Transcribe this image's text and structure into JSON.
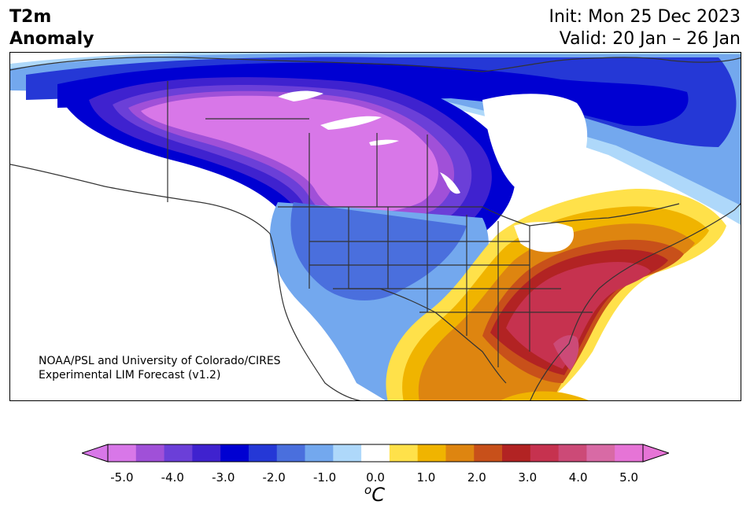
{
  "header": {
    "title_line1": "T2m",
    "title_line2": "Anomaly",
    "init_line": "Init: Mon 25 Dec 2023",
    "valid_line": "Valid: 20 Jan – 26 Jan"
  },
  "credit": {
    "line1": "NOAA/PSL and University of Colorado/CIRES",
    "line2": "Experimental LIM Forecast (v1.2)"
  },
  "colorbar": {
    "unit_base": "C",
    "unit_super": "o",
    "ticks": [
      "-5.0",
      "-4.0",
      "-3.0",
      "-2.0",
      "-1.0",
      "0.0",
      "1.0",
      "2.0",
      "3.0",
      "4.0",
      "5.0"
    ],
    "min": -5.0,
    "max": 5.0,
    "low_extend_color": "#d877e8",
    "high_extend_color": "#e674d6",
    "colors": [
      "#d877e8",
      "#a050d8",
      "#6b3fd8",
      "#3f22cf",
      "#0000d2",
      "#2538d6",
      "#4a6fdd",
      "#73a8ee",
      "#aed8fa",
      "#ffffff",
      "#ffe14a",
      "#f0b400",
      "#de8510",
      "#c8501a",
      "#b22323",
      "#c6324f",
      "#cc4a77",
      "#d86aa5",
      "#e674d6"
    ]
  }
}
